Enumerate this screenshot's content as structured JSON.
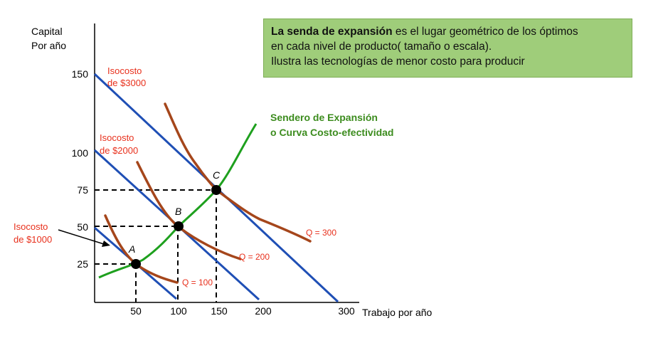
{
  "note": {
    "bold": "La senda de expansión",
    "line1_rest": " es el lugar geométrico de los óptimos",
    "line2": "en cada nivel de producto( tamaño o escala).",
    "line3": "Ilustra las tecnologías de menor costo para producir"
  },
  "axes": {
    "y_label_line1": "Capital",
    "y_label_line2": "Por año",
    "x_label": "Trabajo por año",
    "y_ticks": [
      "150",
      "100",
      "75",
      "50",
      "25"
    ],
    "x_ticks": [
      "50",
      "100",
      "150",
      "200",
      "300"
    ]
  },
  "isocosts": {
    "c3000_line1": "Isocosto",
    "c3000_line2": "de $3000",
    "c2000_line1": "Isocosto",
    "c2000_line2": "de $2000",
    "c1000_line1": "Isocosto",
    "c1000_line2": "de $1000"
  },
  "expansion_path": {
    "line1": "Sendero de Expansión",
    "line2": "o Curva Costo-efectividad"
  },
  "isoquants": {
    "q100": "Q = 100",
    "q200": "Q = 200",
    "q300": "Q = 300"
  },
  "points": {
    "a": "A",
    "b": "B",
    "c": "C"
  },
  "colors": {
    "isocost": "#1f4fb5",
    "isoquant": "#a5461b",
    "expansion": "#1ea01e",
    "red_label": "#e8301c",
    "green_title": "#3c8c1e",
    "note_bg": "#9fcd7a"
  }
}
